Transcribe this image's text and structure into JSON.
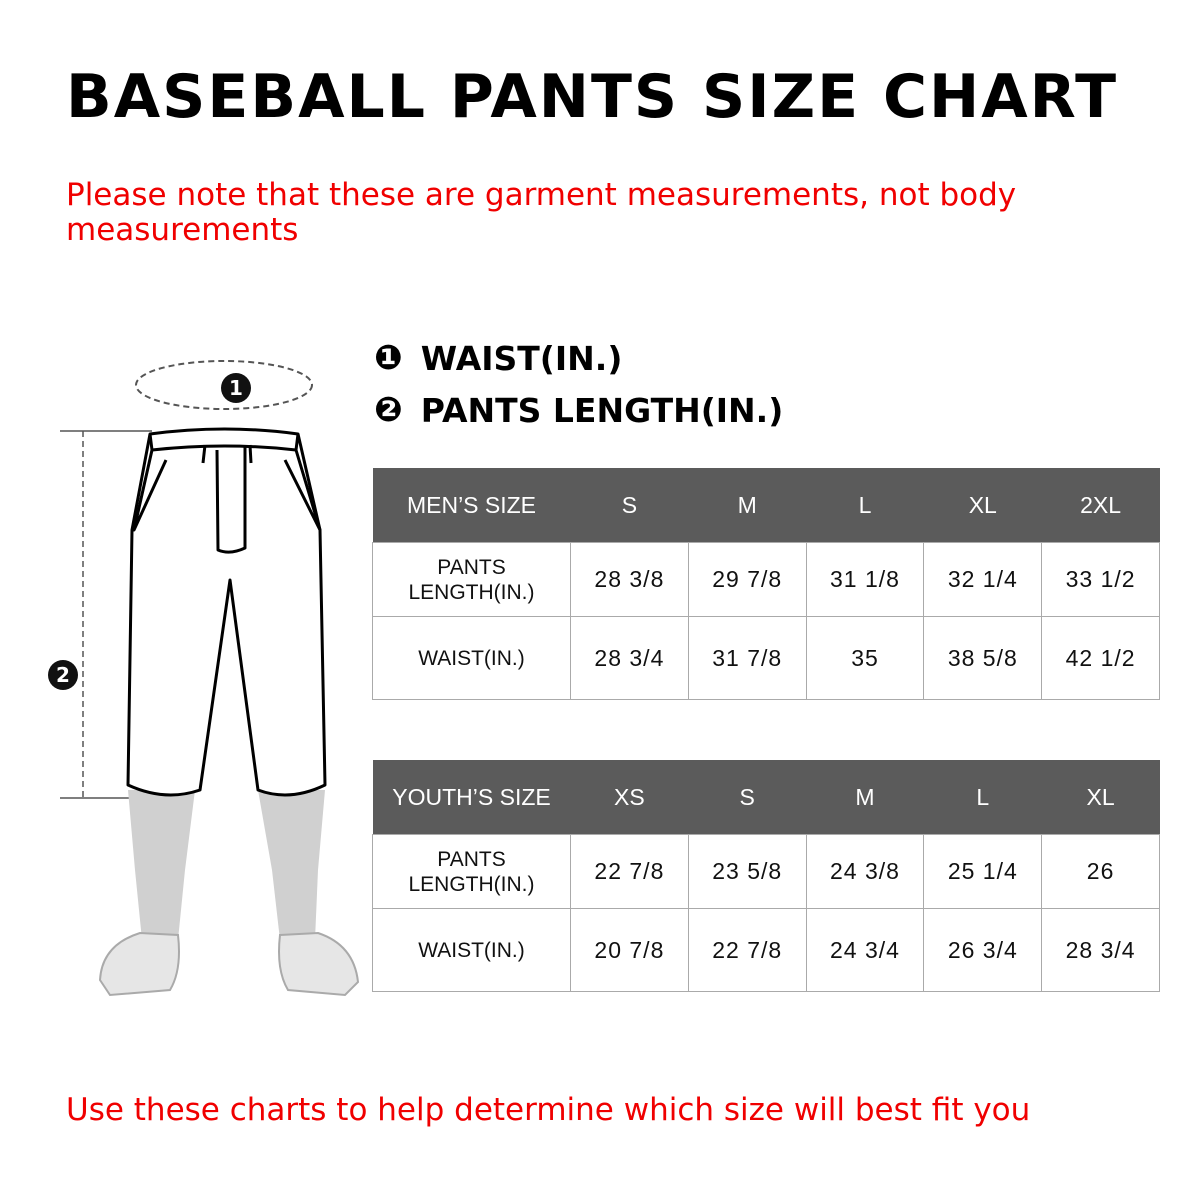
{
  "title": "BASEBALL PANTS SIZE CHART",
  "note": "Please note that these are garment measurements, not body measurements",
  "legend": [
    {
      "marker": "❶",
      "label": "WAIST(IN.)"
    },
    {
      "marker": "❷",
      "label": "PANTS LENGTH(IN.)"
    }
  ],
  "figure": {
    "marker1": "1",
    "marker2": "2"
  },
  "men": {
    "header": [
      "MEN’S SIZE",
      "S",
      "M",
      "L",
      "XL",
      "2XL"
    ],
    "rows": [
      {
        "label": "PANTS LENGTH(IN.)",
        "values": [
          "28 3/8",
          "29 7/8",
          "31 1/8",
          "32 1/4",
          "33 1/2"
        ]
      },
      {
        "label": "WAIST(IN.)",
        "values": [
          "28 3/4",
          "31 7/8",
          "35",
          "38 5/8",
          "42 1/2"
        ]
      }
    ]
  },
  "youth": {
    "header": [
      "YOUTH’S SIZE",
      "XS",
      "S",
      "M",
      "L",
      "XL"
    ],
    "rows": [
      {
        "label": "PANTS LENGTH(IN.)",
        "values": [
          "22 7/8",
          "23 5/8",
          "24 3/8",
          "25 1/4",
          "26"
        ]
      },
      {
        "label": "WAIST(IN.)",
        "values": [
          "20 7/8",
          "22 7/8",
          "24 3/4",
          "26 3/4",
          "28 3/4"
        ]
      }
    ]
  },
  "footer": "Use these charts to help determine which size will best fit you",
  "colors": {
    "accent_red": "#f00000",
    "header_gray": "#5b5b5b"
  }
}
